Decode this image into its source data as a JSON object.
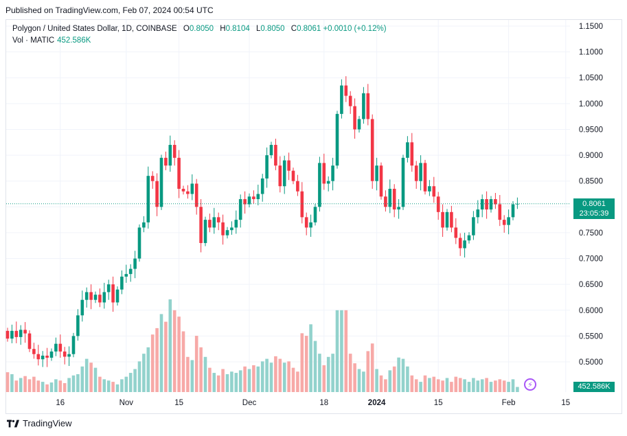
{
  "header": {
    "published": "Published on TradingView.com, Feb 07, 2024 00:54 UTC"
  },
  "legend": {
    "symbol": "Polygon / United States Dollar, 1D, COINBASE",
    "o_label": "O",
    "o": "0.8050",
    "h_label": "H",
    "h": "0.8104",
    "l_label": "L",
    "l": "0.8050",
    "c_label": "C",
    "c": "0.8061",
    "change": "+0.0010 (+0.12%)",
    "vol_label": "Vol · MATIC",
    "vol_value": "452.586K"
  },
  "last_price": {
    "value": "0.8061",
    "countdown": "23:05:39"
  },
  "volume_tag": "452.586K",
  "footer": {
    "brand": "TradingView"
  },
  "colors": {
    "up": "#089981",
    "down": "#f23645",
    "up_vol": "#92d2cc",
    "down_vol": "#f7a9a7",
    "grid": "#f0f3fa"
  },
  "chart_data": {
    "type": "candlestick",
    "y_ticks": [
      "1.1500",
      "1.1000",
      "1.0500",
      "1.0000",
      "0.9500",
      "0.9000",
      "0.8500",
      "0.8000",
      "0.7500",
      "0.7000",
      "0.6500",
      "0.6000",
      "0.5500",
      "0.5000"
    ],
    "x_ticks": [
      "16",
      "Nov",
      "15",
      "Dec",
      "18",
      "2024",
      "15",
      "Feb",
      "15"
    ],
    "ylim": [
      0.46,
      1.16
    ],
    "series": [
      {
        "o": 0.56,
        "c": 0.545,
        "v": 31
      },
      {
        "o": 0.545,
        "c": 0.56,
        "v": 28
      },
      {
        "o": 0.56,
        "c": 0.548,
        "v": 18
      },
      {
        "o": 0.548,
        "c": 0.562,
        "v": 22
      },
      {
        "o": 0.562,
        "c": 0.555,
        "v": 25
      },
      {
        "o": 0.555,
        "c": 0.525,
        "v": 20
      },
      {
        "o": 0.525,
        "c": 0.515,
        "v": 24
      },
      {
        "o": 0.515,
        "c": 0.505,
        "v": 18
      },
      {
        "o": 0.505,
        "c": 0.512,
        "v": 16
      },
      {
        "o": 0.512,
        "c": 0.508,
        "v": 12
      },
      {
        "o": 0.508,
        "c": 0.52,
        "v": 15
      },
      {
        "o": 0.52,
        "c": 0.535,
        "v": 20
      },
      {
        "o": 0.535,
        "c": 0.52,
        "v": 18
      },
      {
        "o": 0.52,
        "c": 0.51,
        "v": 14
      },
      {
        "o": 0.51,
        "c": 0.515,
        "v": 22
      },
      {
        "o": 0.515,
        "c": 0.55,
        "v": 26
      },
      {
        "o": 0.55,
        "c": 0.59,
        "v": 28
      },
      {
        "o": 0.59,
        "c": 0.62,
        "v": 40
      },
      {
        "o": 0.62,
        "c": 0.635,
        "v": 52
      },
      {
        "o": 0.635,
        "c": 0.62,
        "v": 46
      },
      {
        "o": 0.62,
        "c": 0.63,
        "v": 38
      },
      {
        "o": 0.63,
        "c": 0.615,
        "v": 24
      },
      {
        "o": 0.615,
        "c": 0.635,
        "v": 20
      },
      {
        "o": 0.635,
        "c": 0.65,
        "v": 18
      },
      {
        "o": 0.65,
        "c": 0.615,
        "v": 16
      },
      {
        "o": 0.615,
        "c": 0.64,
        "v": 12
      },
      {
        "o": 0.64,
        "c": 0.665,
        "v": 20
      },
      {
        "o": 0.665,
        "c": 0.67,
        "v": 24
      },
      {
        "o": 0.67,
        "c": 0.68,
        "v": 30
      },
      {
        "o": 0.68,
        "c": 0.7,
        "v": 36
      },
      {
        "o": 0.7,
        "c": 0.76,
        "v": 48
      },
      {
        "o": 0.76,
        "c": 0.77,
        "v": 60
      },
      {
        "o": 0.77,
        "c": 0.86,
        "v": 70
      },
      {
        "o": 0.86,
        "c": 0.85,
        "v": 90
      },
      {
        "o": 0.85,
        "c": 0.8,
        "v": 100
      },
      {
        "o": 0.8,
        "c": 0.895,
        "v": 122
      },
      {
        "o": 0.895,
        "c": 0.88,
        "v": 110
      },
      {
        "o": 0.88,
        "c": 0.92,
        "v": 145
      },
      {
        "o": 0.92,
        "c": 0.895,
        "v": 128
      },
      {
        "o": 0.895,
        "c": 0.835,
        "v": 118
      },
      {
        "o": 0.835,
        "c": 0.83,
        "v": 95
      },
      {
        "o": 0.83,
        "c": 0.825,
        "v": 55
      },
      {
        "o": 0.825,
        "c": 0.845,
        "v": 50
      },
      {
        "o": 0.845,
        "c": 0.8,
        "v": 88
      },
      {
        "o": 0.8,
        "c": 0.73,
        "v": 70
      },
      {
        "o": 0.73,
        "c": 0.775,
        "v": 55
      },
      {
        "o": 0.775,
        "c": 0.76,
        "v": 38
      },
      {
        "o": 0.76,
        "c": 0.78,
        "v": 30
      },
      {
        "o": 0.78,
        "c": 0.77,
        "v": 26
      },
      {
        "o": 0.77,
        "c": 0.745,
        "v": 36
      },
      {
        "o": 0.745,
        "c": 0.755,
        "v": 28
      },
      {
        "o": 0.755,
        "c": 0.76,
        "v": 32
      },
      {
        "o": 0.76,
        "c": 0.775,
        "v": 30
      },
      {
        "o": 0.775,
        "c": 0.815,
        "v": 34
      },
      {
        "o": 0.815,
        "c": 0.805,
        "v": 40
      },
      {
        "o": 0.805,
        "c": 0.82,
        "v": 36
      },
      {
        "o": 0.82,
        "c": 0.815,
        "v": 42
      },
      {
        "o": 0.815,
        "c": 0.825,
        "v": 40
      },
      {
        "o": 0.825,
        "c": 0.855,
        "v": 48
      },
      {
        "o": 0.855,
        "c": 0.9,
        "v": 52
      },
      {
        "o": 0.9,
        "c": 0.92,
        "v": 46
      },
      {
        "o": 0.92,
        "c": 0.88,
        "v": 56
      },
      {
        "o": 0.88,
        "c": 0.84,
        "v": 52
      },
      {
        "o": 0.84,
        "c": 0.89,
        "v": 46
      },
      {
        "o": 0.89,
        "c": 0.87,
        "v": 48
      },
      {
        "o": 0.87,
        "c": 0.85,
        "v": 38
      },
      {
        "o": 0.85,
        "c": 0.83,
        "v": 32
      },
      {
        "o": 0.83,
        "c": 0.78,
        "v": 92
      },
      {
        "o": 0.78,
        "c": 0.76,
        "v": 88
      },
      {
        "o": 0.76,
        "c": 0.77,
        "v": 106
      },
      {
        "o": 0.77,
        "c": 0.8,
        "v": 80
      },
      {
        "o": 0.8,
        "c": 0.885,
        "v": 60
      },
      {
        "o": 0.885,
        "c": 0.845,
        "v": 42
      },
      {
        "o": 0.845,
        "c": 0.85,
        "v": 55
      },
      {
        "o": 0.85,
        "c": 0.88,
        "v": 60
      },
      {
        "o": 0.88,
        "c": 0.98,
        "v": 128
      },
      {
        "o": 0.98,
        "c": 1.035,
        "v": 128
      },
      {
        "o": 1.035,
        "c": 1.015,
        "v": 128
      },
      {
        "o": 1.015,
        "c": 0.995,
        "v": 60
      },
      {
        "o": 0.995,
        "c": 0.95,
        "v": 45
      },
      {
        "o": 0.95,
        "c": 0.97,
        "v": 36
      },
      {
        "o": 0.97,
        "c": 1.02,
        "v": 32
      },
      {
        "o": 1.02,
        "c": 0.97,
        "v": 64
      },
      {
        "o": 0.97,
        "c": 0.85,
        "v": 76
      },
      {
        "o": 0.85,
        "c": 0.88,
        "v": 36
      },
      {
        "o": 0.88,
        "c": 0.82,
        "v": 26
      },
      {
        "o": 0.82,
        "c": 0.8,
        "v": 20
      },
      {
        "o": 0.8,
        "c": 0.835,
        "v": 34
      },
      {
        "o": 0.835,
        "c": 0.795,
        "v": 40
      },
      {
        "o": 0.795,
        "c": 0.8,
        "v": 54
      },
      {
        "o": 0.8,
        "c": 0.895,
        "v": 52
      },
      {
        "o": 0.895,
        "c": 0.925,
        "v": 40
      },
      {
        "o": 0.925,
        "c": 0.88,
        "v": 26
      },
      {
        "o": 0.88,
        "c": 0.85,
        "v": 20
      },
      {
        "o": 0.85,
        "c": 0.885,
        "v": 16
      },
      {
        "o": 0.885,
        "c": 0.83,
        "v": 26
      },
      {
        "o": 0.83,
        "c": 0.84,
        "v": 22
      },
      {
        "o": 0.84,
        "c": 0.82,
        "v": 24
      },
      {
        "o": 0.82,
        "c": 0.79,
        "v": 20
      },
      {
        "o": 0.79,
        "c": 0.76,
        "v": 18
      },
      {
        "o": 0.76,
        "c": 0.79,
        "v": 22
      },
      {
        "o": 0.79,
        "c": 0.76,
        "v": 16
      },
      {
        "o": 0.76,
        "c": 0.74,
        "v": 24
      },
      {
        "o": 0.74,
        "c": 0.72,
        "v": 22
      },
      {
        "o": 0.72,
        "c": 0.735,
        "v": 20
      },
      {
        "o": 0.735,
        "c": 0.745,
        "v": 16
      },
      {
        "o": 0.745,
        "c": 0.78,
        "v": 22
      },
      {
        "o": 0.78,
        "c": 0.795,
        "v": 18
      },
      {
        "o": 0.795,
        "c": 0.815,
        "v": 20
      },
      {
        "o": 0.815,
        "c": 0.795,
        "v": 22
      },
      {
        "o": 0.795,
        "c": 0.815,
        "v": 16
      },
      {
        "o": 0.815,
        "c": 0.805,
        "v": 18
      },
      {
        "o": 0.805,
        "c": 0.775,
        "v": 20
      },
      {
        "o": 0.775,
        "c": 0.765,
        "v": 18
      },
      {
        "o": 0.765,
        "c": 0.78,
        "v": 16
      },
      {
        "o": 0.78,
        "c": 0.805,
        "v": 20
      },
      {
        "o": 0.805,
        "c": 0.8061,
        "v": 8
      }
    ]
  }
}
